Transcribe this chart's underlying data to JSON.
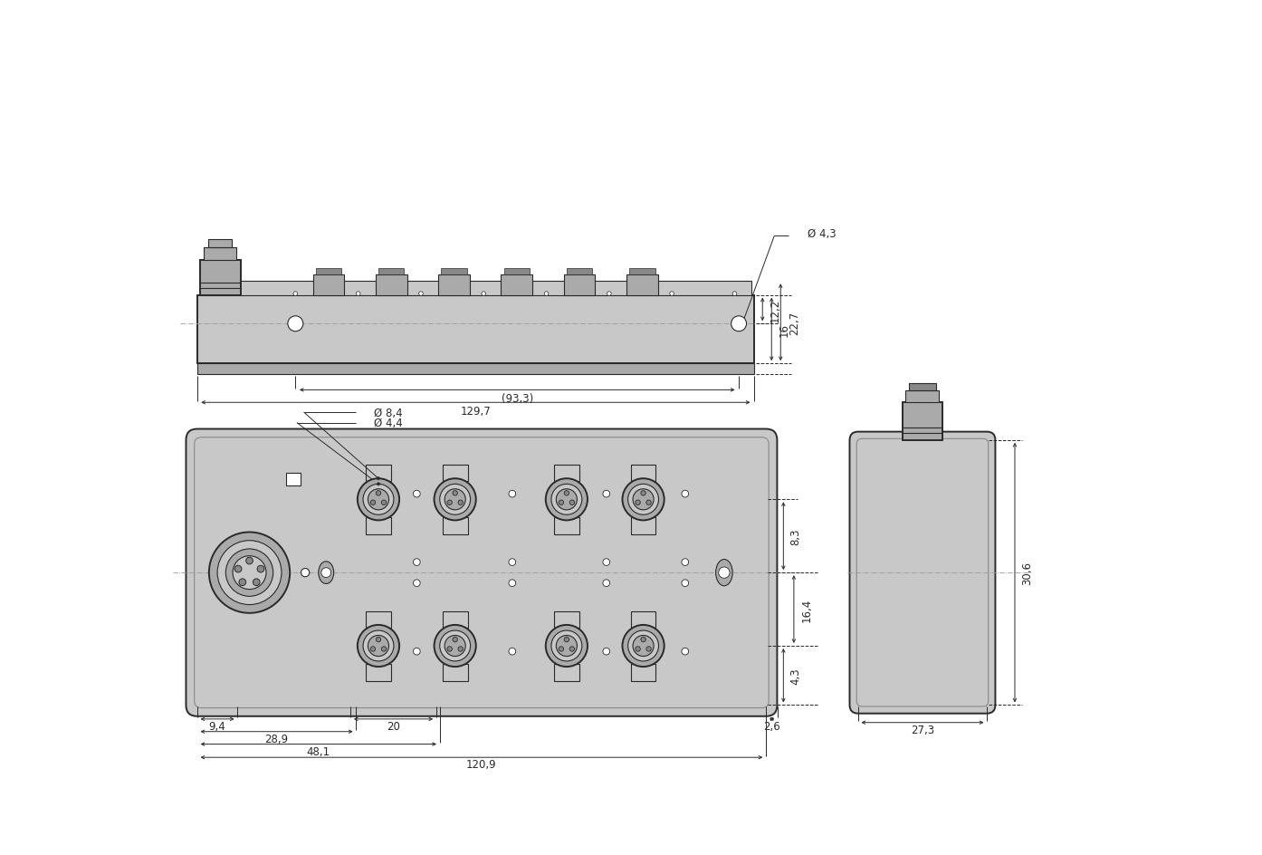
{
  "bg_color": "#ffffff",
  "lc": "#2a2a2a",
  "dc": "#2a2a2a",
  "gray1": "#c8c8c8",
  "gray2": "#aaaaaa",
  "gray3": "#888888",
  "gray4": "#666666",
  "dash_color": "#999999",
  "lw_main": 1.4,
  "lw_thin": 0.8,
  "lw_dim": 0.7,
  "lw_dash": 0.6,
  "dim_fs": 8.5,
  "dims_top": {
    "phi_4_3": "Ø 4,3",
    "d_93_3": "(93,3)",
    "d_129_7": "129,7",
    "d_12_2": "12,2",
    "d_16": "16",
    "d_22_7": "22,7"
  },
  "dims_front": {
    "phi_8_4": "Ø 8,4",
    "phi_4_4": "Ø 4,4",
    "d_9_4": "9,4",
    "d_20": "20",
    "d_28_9": "28,9",
    "d_48_1": "48,1",
    "d_120_9": "120,9",
    "d_2_6": "2,6",
    "d_8_3": "8,3",
    "d_16_4": "16,4",
    "d_4_3": "4,3"
  },
  "dims_side": {
    "d_30_6": "30,6",
    "d_27_3": "27,3"
  }
}
